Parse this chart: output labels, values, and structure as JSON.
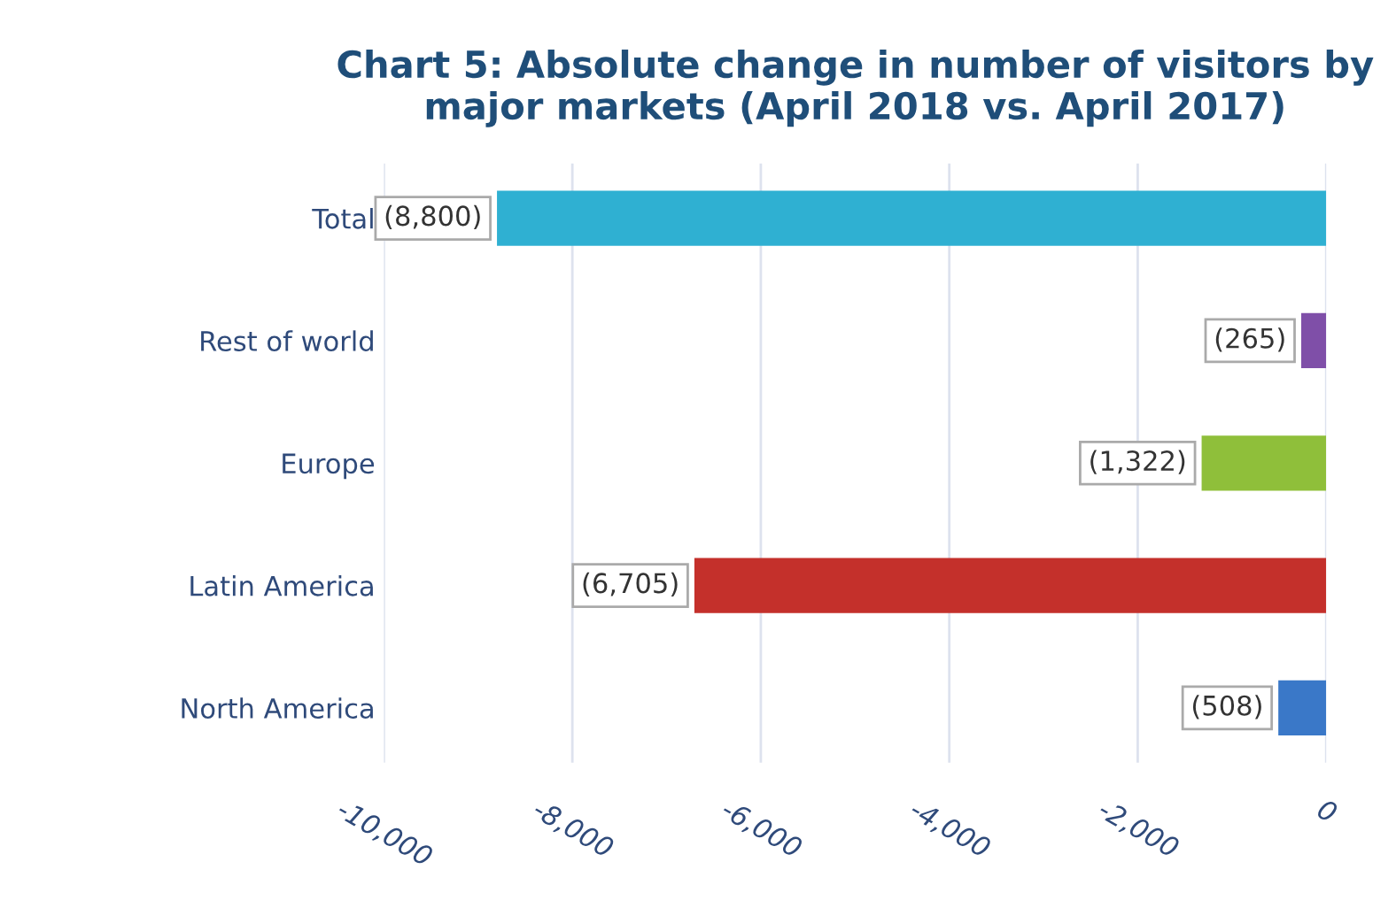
{
  "chart_data": {
    "type": "bar",
    "orientation": "horizontal",
    "title": "Chart 5: Absolute change in number of visitors by\nmajor markets (April 2018 vs. April 2017)",
    "categories": [
      "Total",
      "Rest of world",
      "Europe",
      "Latin America",
      "North America"
    ],
    "values": [
      -8800,
      -265,
      -1322,
      -6705,
      -508
    ],
    "colors": [
      "#2fb0d2",
      "#7f4fa8",
      "#8fbf3a",
      "#c4302b",
      "#3a78c8"
    ],
    "value_labels": [
      "(8,800)",
      "(265)",
      "(1,322)",
      "(6,705)",
      "(508)"
    ],
    "xlim": [
      -10000,
      0
    ],
    "xticks": [
      {
        "value": -10000,
        "label": "-10,000"
      },
      {
        "value": -8000,
        "label": "-8,000"
      },
      {
        "value": -6000,
        "label": "-6,000"
      },
      {
        "value": -4000,
        "label": "-4,000"
      },
      {
        "value": -2000,
        "label": "-2,000"
      },
      0
    ],
    "grid": "x",
    "legend": false
  }
}
